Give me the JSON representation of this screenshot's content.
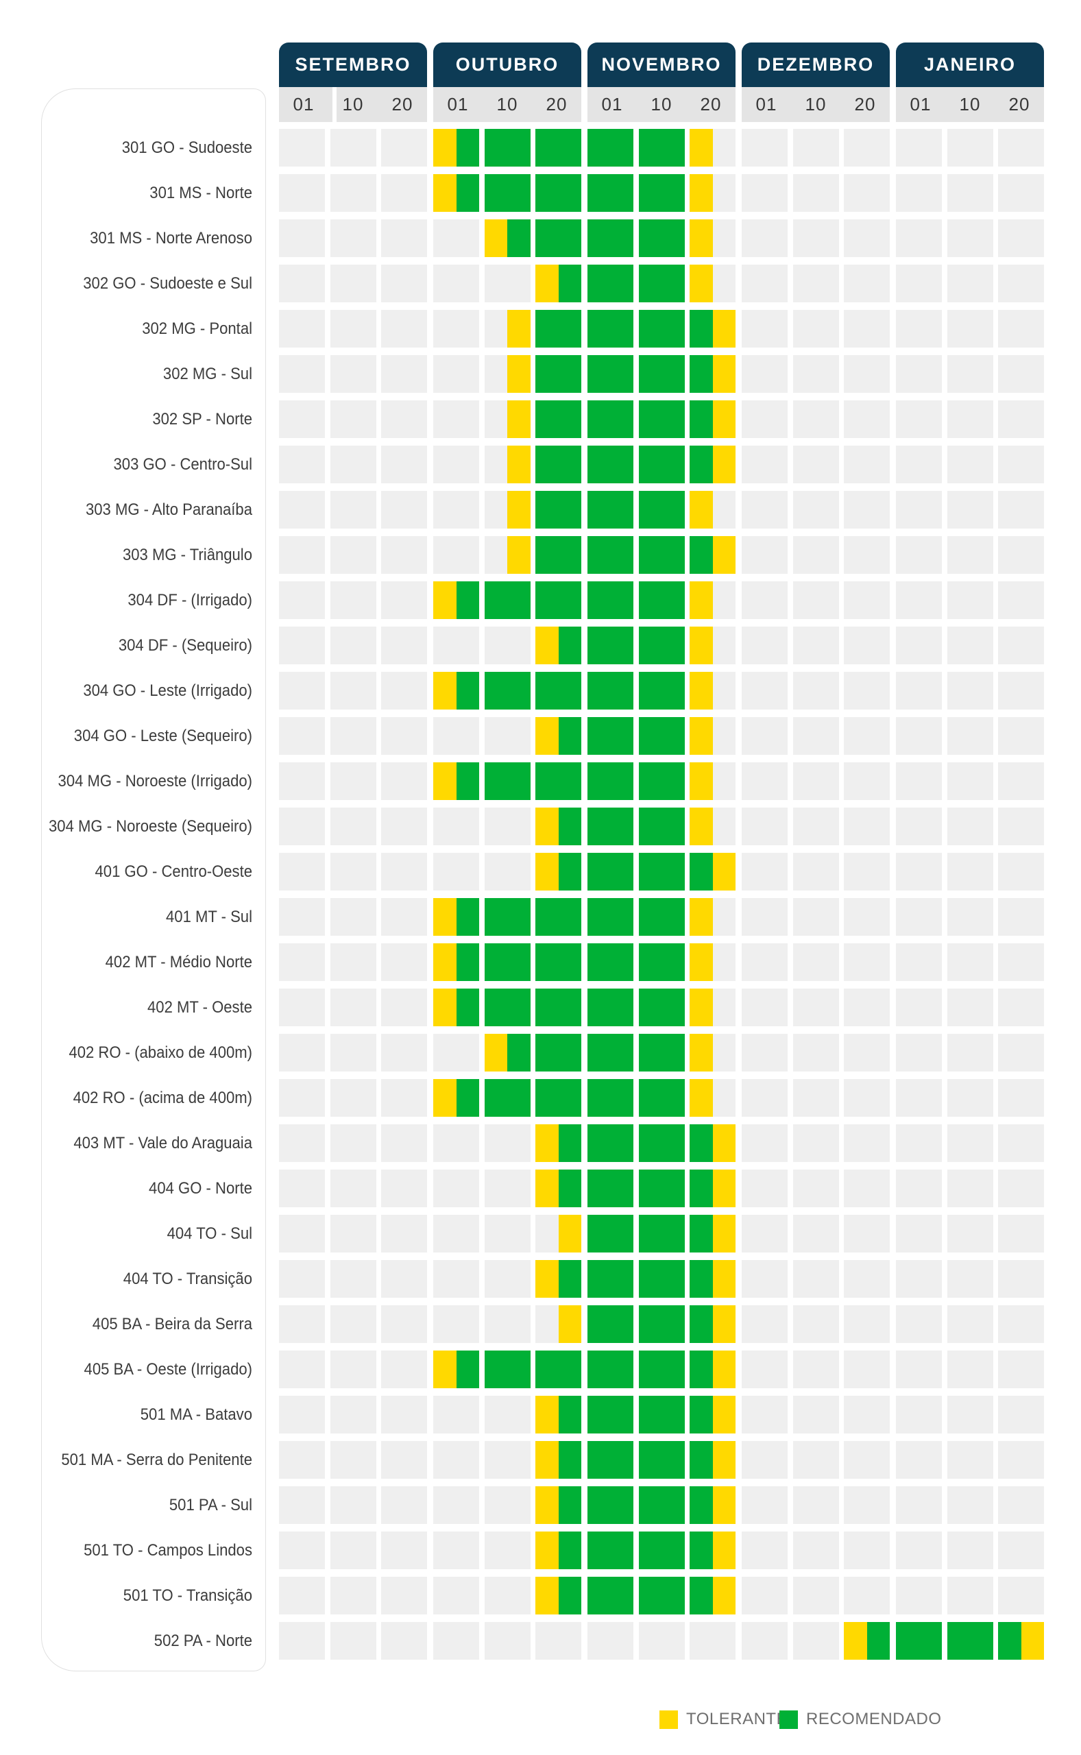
{
  "colors": {
    "header_blue": "#0d3b55",
    "subheader_gray": "#e4e4e4",
    "empty_cell_gray": "#efefef",
    "tolerante_yellow": "#ffd900",
    "recomendado_green": "#00b036",
    "card_border": "#e0e0e0",
    "label_text": "#3c3c3c",
    "legend_text": "#6f6f6f"
  },
  "legend": [
    {
      "key": "tolerante",
      "label": "TOLERANTE",
      "color": "#ffd900"
    },
    {
      "key": "recomendado",
      "label": "RECOMENDADO",
      "color": "#00b036"
    }
  ],
  "chart_data": {
    "type": "bar",
    "subtype": "gantt_planting_calendar",
    "unit_note": "segments are in half-column units; each column = one 10-day period (ticks 01/10/20 of each month); 0 = start of SETEMBRO 01 column, 30 = end of JANEIRO 20 column",
    "months": [
      {
        "label": "SETEMBRO",
        "ticks": [
          "01",
          "10",
          "20"
        ]
      },
      {
        "label": "OUTUBRO",
        "ticks": [
          "01",
          "10",
          "20"
        ]
      },
      {
        "label": "NOVEMBRO",
        "ticks": [
          "01",
          "10",
          "20"
        ]
      },
      {
        "label": "DEZEMBRO",
        "ticks": [
          "01",
          "10",
          "20"
        ]
      },
      {
        "label": "JANEIRO",
        "ticks": [
          "01",
          "10",
          "20"
        ]
      }
    ],
    "rows": [
      {
        "label": "301 GO - Sudoeste",
        "segments": [
          {
            "type": "tolerante",
            "from": 6,
            "to": 7
          },
          {
            "type": "recomendado",
            "from": 7,
            "to": 16
          },
          {
            "type": "tolerante",
            "from": 16,
            "to": 17
          }
        ]
      },
      {
        "label": "301 MS - Norte",
        "segments": [
          {
            "type": "tolerante",
            "from": 6,
            "to": 7
          },
          {
            "type": "recomendado",
            "from": 7,
            "to": 16
          },
          {
            "type": "tolerante",
            "from": 16,
            "to": 17
          }
        ]
      },
      {
        "label": "301 MS - Norte Arenoso",
        "segments": [
          {
            "type": "tolerante",
            "from": 8,
            "to": 9
          },
          {
            "type": "recomendado",
            "from": 9,
            "to": 16
          },
          {
            "type": "tolerante",
            "from": 16,
            "to": 17
          }
        ]
      },
      {
        "label": "302 GO - Sudoeste e Sul",
        "segments": [
          {
            "type": "tolerante",
            "from": 10,
            "to": 11
          },
          {
            "type": "recomendado",
            "from": 11,
            "to": 16
          },
          {
            "type": "tolerante",
            "from": 16,
            "to": 17
          }
        ]
      },
      {
        "label": "302 MG - Pontal",
        "segments": [
          {
            "type": "tolerante",
            "from": 9,
            "to": 10
          },
          {
            "type": "recomendado",
            "from": 10,
            "to": 17
          },
          {
            "type": "tolerante",
            "from": 17,
            "to": 18
          }
        ]
      },
      {
        "label": "302 MG - Sul",
        "segments": [
          {
            "type": "tolerante",
            "from": 9,
            "to": 10
          },
          {
            "type": "recomendado",
            "from": 10,
            "to": 17
          },
          {
            "type": "tolerante",
            "from": 17,
            "to": 18
          }
        ]
      },
      {
        "label": "302 SP - Norte",
        "segments": [
          {
            "type": "tolerante",
            "from": 9,
            "to": 10
          },
          {
            "type": "recomendado",
            "from": 10,
            "to": 17
          },
          {
            "type": "tolerante",
            "from": 17,
            "to": 18
          }
        ]
      },
      {
        "label": "303 GO - Centro-Sul",
        "segments": [
          {
            "type": "tolerante",
            "from": 9,
            "to": 10
          },
          {
            "type": "recomendado",
            "from": 10,
            "to": 17
          },
          {
            "type": "tolerante",
            "from": 17,
            "to": 18
          }
        ]
      },
      {
        "label": "303 MG - Alto Paranaíba",
        "segments": [
          {
            "type": "tolerante",
            "from": 9,
            "to": 10
          },
          {
            "type": "recomendado",
            "from": 10,
            "to": 16
          },
          {
            "type": "tolerante",
            "from": 16,
            "to": 17
          }
        ]
      },
      {
        "label": "303 MG - Triângulo",
        "segments": [
          {
            "type": "tolerante",
            "from": 9,
            "to": 10
          },
          {
            "type": "recomendado",
            "from": 10,
            "to": 17
          },
          {
            "type": "tolerante",
            "from": 17,
            "to": 18
          }
        ]
      },
      {
        "label": "304 DF - (Irrigado)",
        "segments": [
          {
            "type": "tolerante",
            "from": 6,
            "to": 7
          },
          {
            "type": "recomendado",
            "from": 7,
            "to": 16
          },
          {
            "type": "tolerante",
            "from": 16,
            "to": 17
          }
        ]
      },
      {
        "label": "304 DF - (Sequeiro)",
        "segments": [
          {
            "type": "tolerante",
            "from": 10,
            "to": 11
          },
          {
            "type": "recomendado",
            "from": 11,
            "to": 16
          },
          {
            "type": "tolerante",
            "from": 16,
            "to": 17
          }
        ]
      },
      {
        "label": "304 GO - Leste (Irrigado)",
        "segments": [
          {
            "type": "tolerante",
            "from": 6,
            "to": 7
          },
          {
            "type": "recomendado",
            "from": 7,
            "to": 16
          },
          {
            "type": "tolerante",
            "from": 16,
            "to": 17
          }
        ]
      },
      {
        "label": "304 GO - Leste (Sequeiro)",
        "segments": [
          {
            "type": "tolerante",
            "from": 10,
            "to": 11
          },
          {
            "type": "recomendado",
            "from": 11,
            "to": 16
          },
          {
            "type": "tolerante",
            "from": 16,
            "to": 17
          }
        ]
      },
      {
        "label": "304 MG - Noroeste (Irrigado)",
        "segments": [
          {
            "type": "tolerante",
            "from": 6,
            "to": 7
          },
          {
            "type": "recomendado",
            "from": 7,
            "to": 16
          },
          {
            "type": "tolerante",
            "from": 16,
            "to": 17
          }
        ]
      },
      {
        "label": "304 MG - Noroeste (Sequeiro)",
        "segments": [
          {
            "type": "tolerante",
            "from": 10,
            "to": 11
          },
          {
            "type": "recomendado",
            "from": 11,
            "to": 16
          },
          {
            "type": "tolerante",
            "from": 16,
            "to": 17
          }
        ]
      },
      {
        "label": "401 GO - Centro-Oeste",
        "segments": [
          {
            "type": "tolerante",
            "from": 10,
            "to": 11
          },
          {
            "type": "recomendado",
            "from": 11,
            "to": 17
          },
          {
            "type": "tolerante",
            "from": 17,
            "to": 18
          }
        ]
      },
      {
        "label": "401 MT - Sul",
        "segments": [
          {
            "type": "tolerante",
            "from": 6,
            "to": 7
          },
          {
            "type": "recomendado",
            "from": 7,
            "to": 16
          },
          {
            "type": "tolerante",
            "from": 16,
            "to": 17
          }
        ]
      },
      {
        "label": "402 MT - Médio Norte",
        "segments": [
          {
            "type": "tolerante",
            "from": 6,
            "to": 7
          },
          {
            "type": "recomendado",
            "from": 7,
            "to": 16
          },
          {
            "type": "tolerante",
            "from": 16,
            "to": 17
          }
        ]
      },
      {
        "label": "402 MT - Oeste",
        "segments": [
          {
            "type": "tolerante",
            "from": 6,
            "to": 7
          },
          {
            "type": "recomendado",
            "from": 7,
            "to": 16
          },
          {
            "type": "tolerante",
            "from": 16,
            "to": 17
          }
        ]
      },
      {
        "label": "402 RO - (abaixo de 400m)",
        "segments": [
          {
            "type": "tolerante",
            "from": 8,
            "to": 9
          },
          {
            "type": "recomendado",
            "from": 9,
            "to": 16
          },
          {
            "type": "tolerante",
            "from": 16,
            "to": 17
          }
        ]
      },
      {
        "label": "402 RO - (acima de 400m)",
        "segments": [
          {
            "type": "tolerante",
            "from": 6,
            "to": 7
          },
          {
            "type": "recomendado",
            "from": 7,
            "to": 16
          },
          {
            "type": "tolerante",
            "from": 16,
            "to": 17
          }
        ]
      },
      {
        "label": "403 MT - Vale do Araguaia",
        "segments": [
          {
            "type": "tolerante",
            "from": 10,
            "to": 11
          },
          {
            "type": "recomendado",
            "from": 11,
            "to": 17
          },
          {
            "type": "tolerante",
            "from": 17,
            "to": 18
          }
        ]
      },
      {
        "label": "404 GO - Norte",
        "segments": [
          {
            "type": "tolerante",
            "from": 10,
            "to": 11
          },
          {
            "type": "recomendado",
            "from": 11,
            "to": 17
          },
          {
            "type": "tolerante",
            "from": 17,
            "to": 18
          }
        ]
      },
      {
        "label": "404 TO - Sul",
        "segments": [
          {
            "type": "tolerante",
            "from": 11,
            "to": 12
          },
          {
            "type": "recomendado",
            "from": 12,
            "to": 17
          },
          {
            "type": "tolerante",
            "from": 17,
            "to": 18
          }
        ]
      },
      {
        "label": "404 TO - Transição",
        "segments": [
          {
            "type": "tolerante",
            "from": 10,
            "to": 11
          },
          {
            "type": "recomendado",
            "from": 11,
            "to": 17
          },
          {
            "type": "tolerante",
            "from": 17,
            "to": 18
          }
        ]
      },
      {
        "label": "405 BA - Beira da Serra",
        "segments": [
          {
            "type": "tolerante",
            "from": 11,
            "to": 12
          },
          {
            "type": "recomendado",
            "from": 12,
            "to": 17
          },
          {
            "type": "tolerante",
            "from": 17,
            "to": 18
          }
        ]
      },
      {
        "label": "405 BA - Oeste (Irrigado)",
        "segments": [
          {
            "type": "tolerante",
            "from": 6,
            "to": 7
          },
          {
            "type": "recomendado",
            "from": 7,
            "to": 17
          },
          {
            "type": "tolerante",
            "from": 17,
            "to": 18
          }
        ]
      },
      {
        "label": "501 MA - Batavo",
        "segments": [
          {
            "type": "tolerante",
            "from": 10,
            "to": 11
          },
          {
            "type": "recomendado",
            "from": 11,
            "to": 17
          },
          {
            "type": "tolerante",
            "from": 17,
            "to": 18
          }
        ]
      },
      {
        "label": "501 MA - Serra do Penitente",
        "segments": [
          {
            "type": "tolerante",
            "from": 10,
            "to": 11
          },
          {
            "type": "recomendado",
            "from": 11,
            "to": 17
          },
          {
            "type": "tolerante",
            "from": 17,
            "to": 18
          }
        ]
      },
      {
        "label": "501 PA - Sul",
        "segments": [
          {
            "type": "tolerante",
            "from": 10,
            "to": 11
          },
          {
            "type": "recomendado",
            "from": 11,
            "to": 17
          },
          {
            "type": "tolerante",
            "from": 17,
            "to": 18
          }
        ]
      },
      {
        "label": "501 TO - Campos Lindos",
        "segments": [
          {
            "type": "tolerante",
            "from": 10,
            "to": 11
          },
          {
            "type": "recomendado",
            "from": 11,
            "to": 17
          },
          {
            "type": "tolerante",
            "from": 17,
            "to": 18
          }
        ]
      },
      {
        "label": "501 TO - Transição",
        "segments": [
          {
            "type": "tolerante",
            "from": 10,
            "to": 11
          },
          {
            "type": "recomendado",
            "from": 11,
            "to": 17
          },
          {
            "type": "tolerante",
            "from": 17,
            "to": 18
          }
        ]
      },
      {
        "label": "502 PA - Norte",
        "segments": [
          {
            "type": "tolerante",
            "from": 22,
            "to": 23
          },
          {
            "type": "recomendado",
            "from": 23,
            "to": 29
          },
          {
            "type": "tolerante",
            "from": 29,
            "to": 30
          }
        ]
      }
    ]
  }
}
